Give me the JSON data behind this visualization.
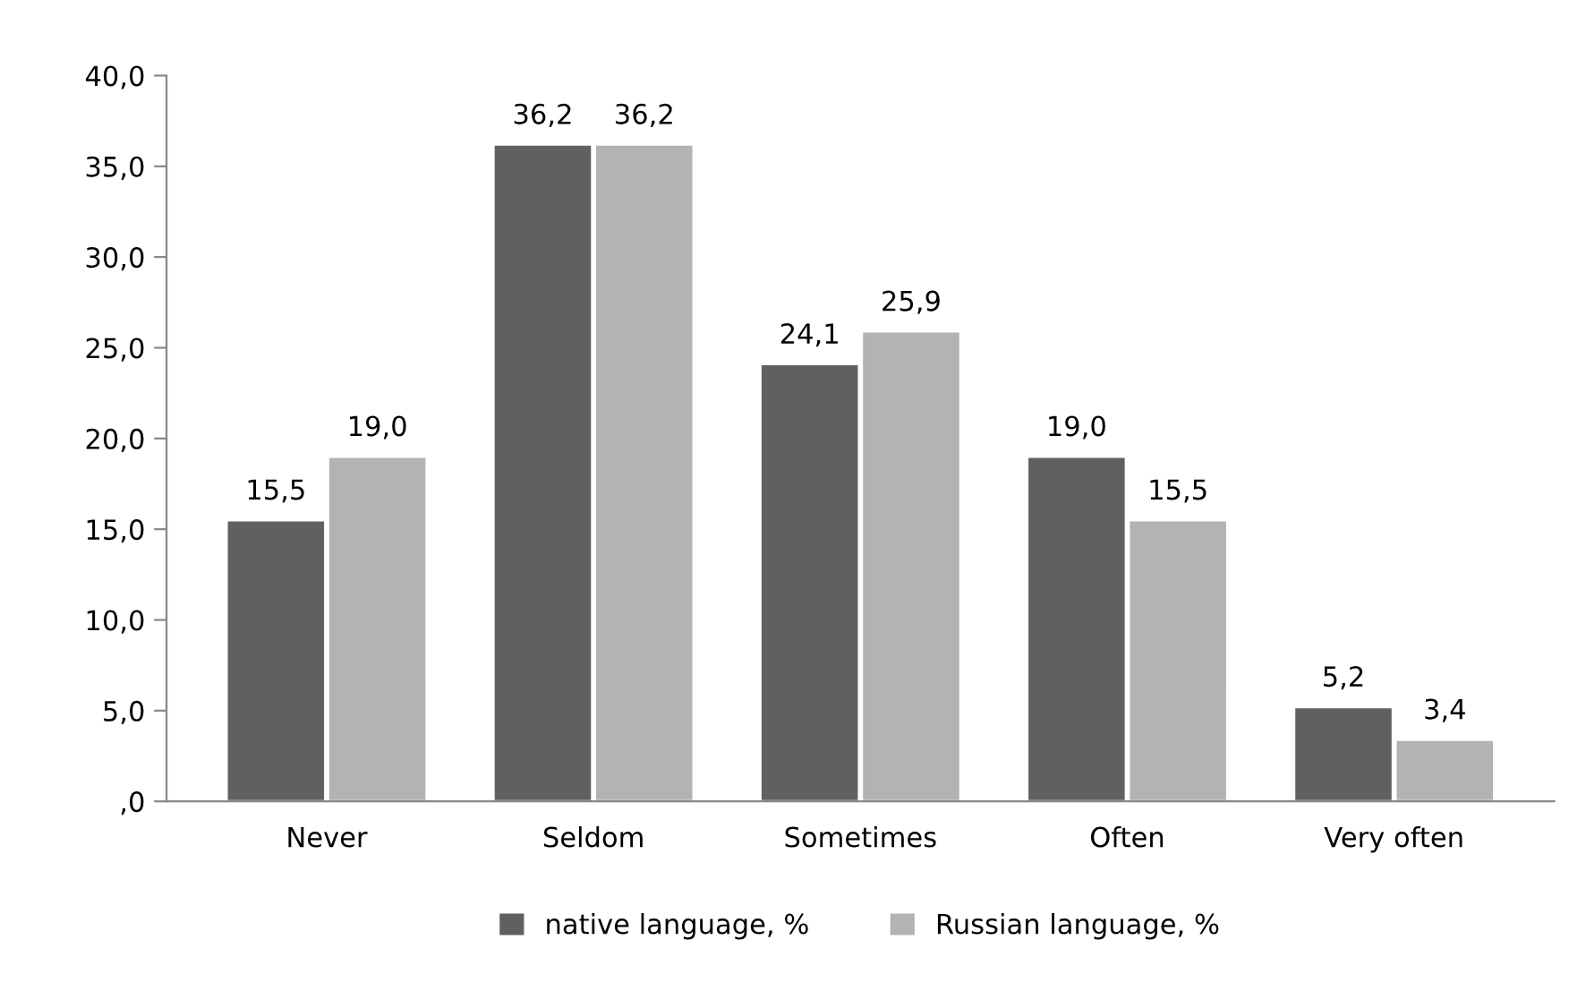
{
  "chart_data": {
    "type": "bar",
    "categories": [
      "Never",
      "Seldom",
      "Sometimes",
      "Often",
      "Very often"
    ],
    "series": [
      {
        "name": "native language, %",
        "color": "#606060",
        "values": [
          15.5,
          36.2,
          24.1,
          19.0,
          5.2
        ],
        "value_labels": [
          "15,5",
          "36,2",
          "24,1",
          "19,0",
          "5,2"
        ]
      },
      {
        "name": "Russian language, %",
        "color": "#b3b3b3",
        "values": [
          19.0,
          36.2,
          25.9,
          15.5,
          3.4
        ],
        "value_labels": [
          "19,0",
          "36,2",
          "25,9",
          "15,5",
          "3,4"
        ]
      }
    ],
    "ylim": [
      0,
      40
    ],
    "yticks": [
      {
        "value": 0,
        "label": ",0"
      },
      {
        "value": 5,
        "label": "5,0"
      },
      {
        "value": 10,
        "label": "10,0"
      },
      {
        "value": 15,
        "label": "15,0"
      },
      {
        "value": 20,
        "label": "20,0"
      },
      {
        "value": 25,
        "label": "25,0"
      },
      {
        "value": 30,
        "label": "30,0"
      },
      {
        "value": 35,
        "label": "35,0"
      },
      {
        "value": 40,
        "label": "40,0"
      }
    ],
    "grid": false,
    "legend": "bottom"
  }
}
